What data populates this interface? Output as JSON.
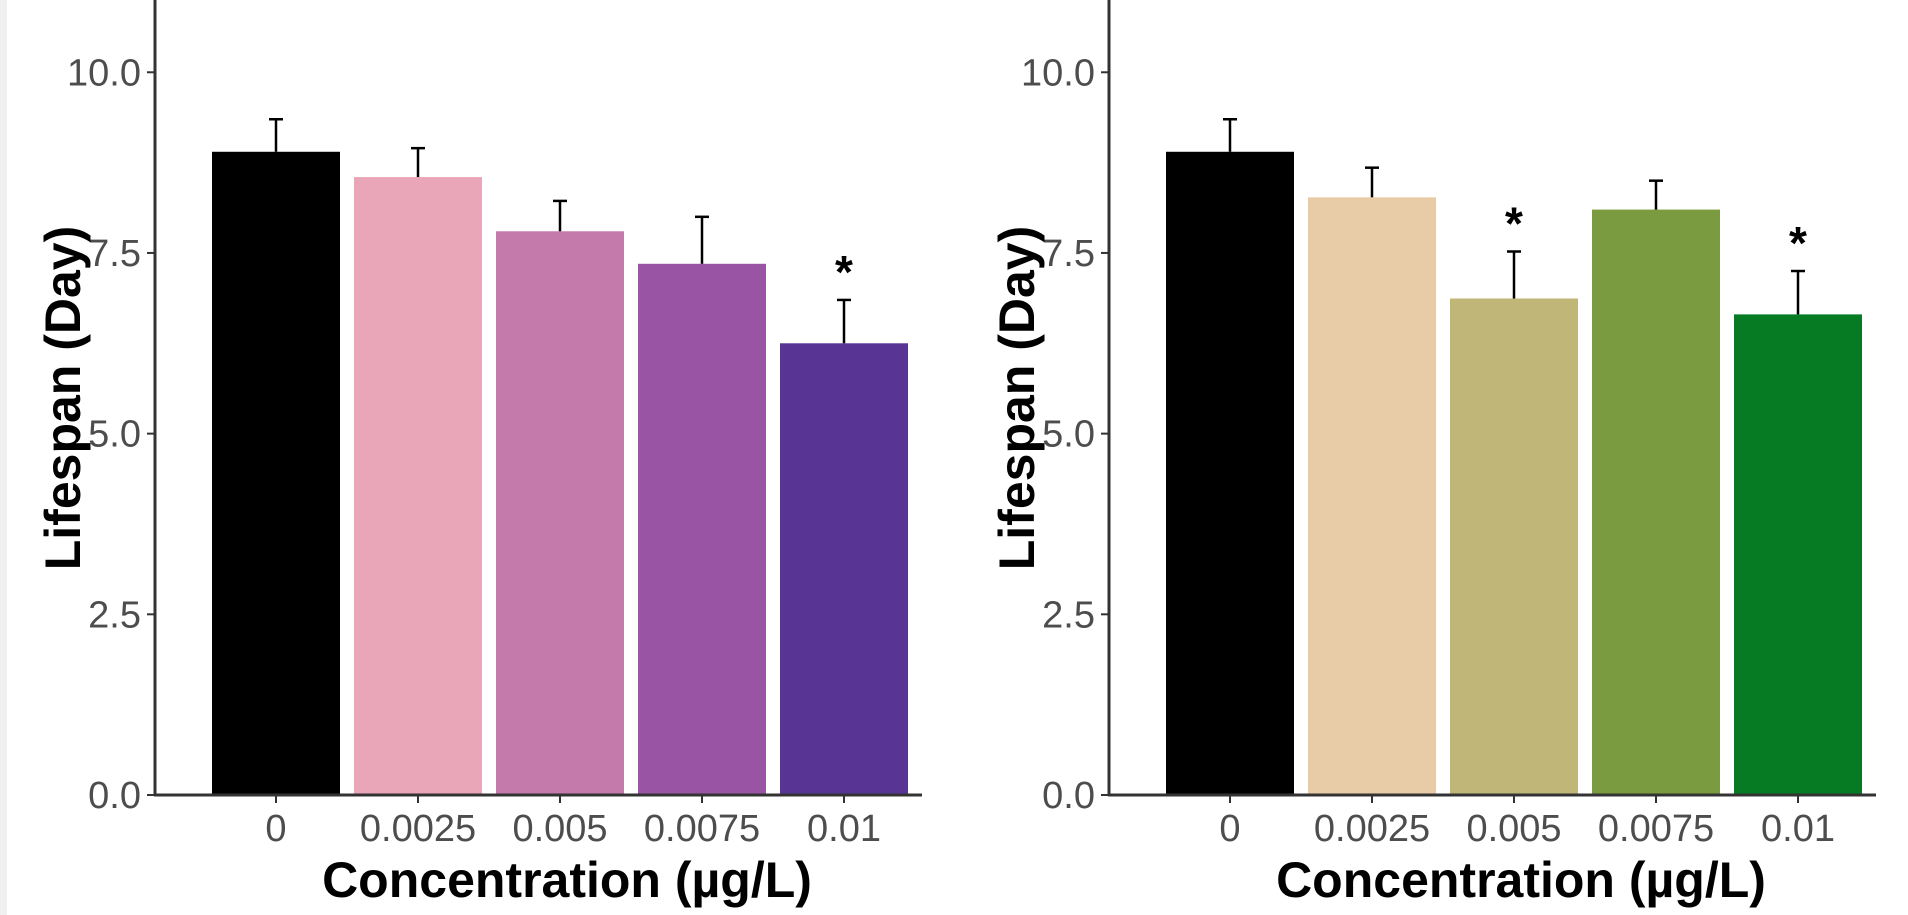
{
  "chart_data": [
    {
      "type": "bar",
      "xlabel": "Concentration (µg/L)",
      "ylabel": "Lifespan (Day)",
      "ylim": [
        0,
        11
      ],
      "yticks": [
        "0.0",
        "2.5",
        "5.0",
        "7.5",
        "10.0"
      ],
      "categories": [
        "0",
        "0.0025",
        "0.005",
        "0.0075",
        "0.01"
      ],
      "values": [
        8.9,
        8.55,
        7.8,
        7.35,
        6.25
      ],
      "error_upper": [
        9.35,
        8.95,
        8.22,
        8.0,
        6.85
      ],
      "significance": [
        "",
        "",
        "",
        "",
        "*"
      ],
      "colors": [
        "#000000",
        "#e8a6b8",
        "#c57aac",
        "#9955a3",
        "#583595"
      ],
      "grid": false
    },
    {
      "type": "bar",
      "xlabel": "Concentration (µg/L)",
      "ylabel": "Lifespan (Day)",
      "ylim": [
        0,
        11
      ],
      "yticks": [
        "0.0",
        "2.5",
        "5.0",
        "7.5",
        "10.0"
      ],
      "categories": [
        "0",
        "0.0025",
        "0.005",
        "0.0075",
        "0.01"
      ],
      "values": [
        8.9,
        8.27,
        6.87,
        8.1,
        6.65
      ],
      "error_upper": [
        9.35,
        8.68,
        7.52,
        8.5,
        7.25
      ],
      "significance": [
        "",
        "",
        "*",
        "",
        "*"
      ],
      "colors": [
        "#000000",
        "#e8cca8",
        "#bfb677",
        "#7b9b40",
        "#067b24"
      ],
      "grid": false
    }
  ]
}
